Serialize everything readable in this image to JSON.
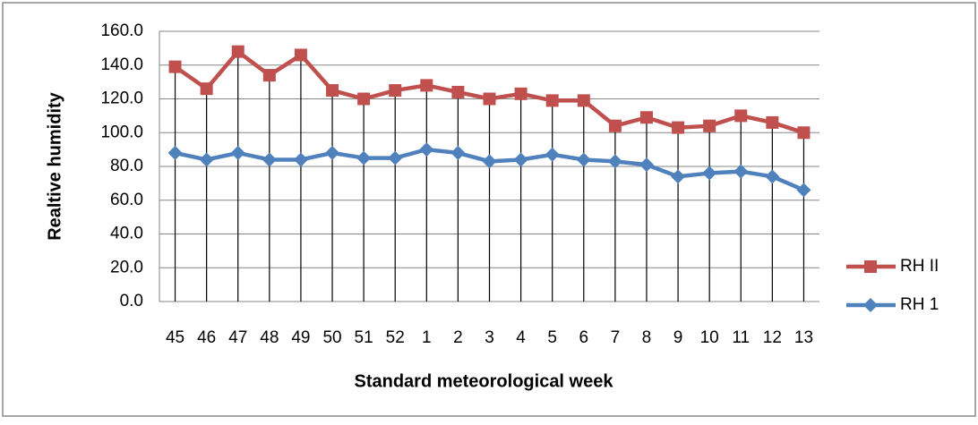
{
  "chart_data": {
    "type": "line",
    "x_label": "Standard meteorological week",
    "y_label": "Realtive humidity",
    "categories": [
      "45",
      "46",
      "47",
      "48",
      "49",
      "50",
      "51",
      "52",
      "1",
      "2",
      "3",
      "4",
      "5",
      "6",
      "7",
      "8",
      "9",
      "10",
      "11",
      "12",
      "13"
    ],
    "series": [
      {
        "name": "RH II",
        "color": "#c0504d",
        "marker": "square",
        "values": [
          139,
          126,
          148,
          134,
          146,
          125,
          120,
          125,
          128,
          124,
          120,
          123,
          119,
          119,
          104,
          109,
          103,
          104,
          110,
          106,
          100
        ]
      },
      {
        "name": "RH 1",
        "color": "#4f81bd",
        "marker": "diamond",
        "values": [
          88,
          84,
          88,
          84,
          84,
          88,
          85,
          85,
          90,
          88,
          83,
          84,
          87,
          84,
          83,
          81,
          74,
          76,
          77,
          74,
          66
        ]
      }
    ],
    "ylim": [
      0,
      160
    ],
    "yticks": [
      {
        "value": 0,
        "label": "0.0"
      },
      {
        "value": 20,
        "label": "20.0"
      },
      {
        "value": 40,
        "label": "40.0"
      },
      {
        "value": 60,
        "label": "60.0"
      },
      {
        "value": 80,
        "label": "80.0"
      },
      {
        "value": 100,
        "label": "100.0"
      },
      {
        "value": 120,
        "label": "120.0"
      },
      {
        "value": 140,
        "label": "140.0"
      },
      {
        "value": 160,
        "label": "160.0"
      }
    ],
    "grid": true,
    "drop_lines": true,
    "legend": "right"
  }
}
